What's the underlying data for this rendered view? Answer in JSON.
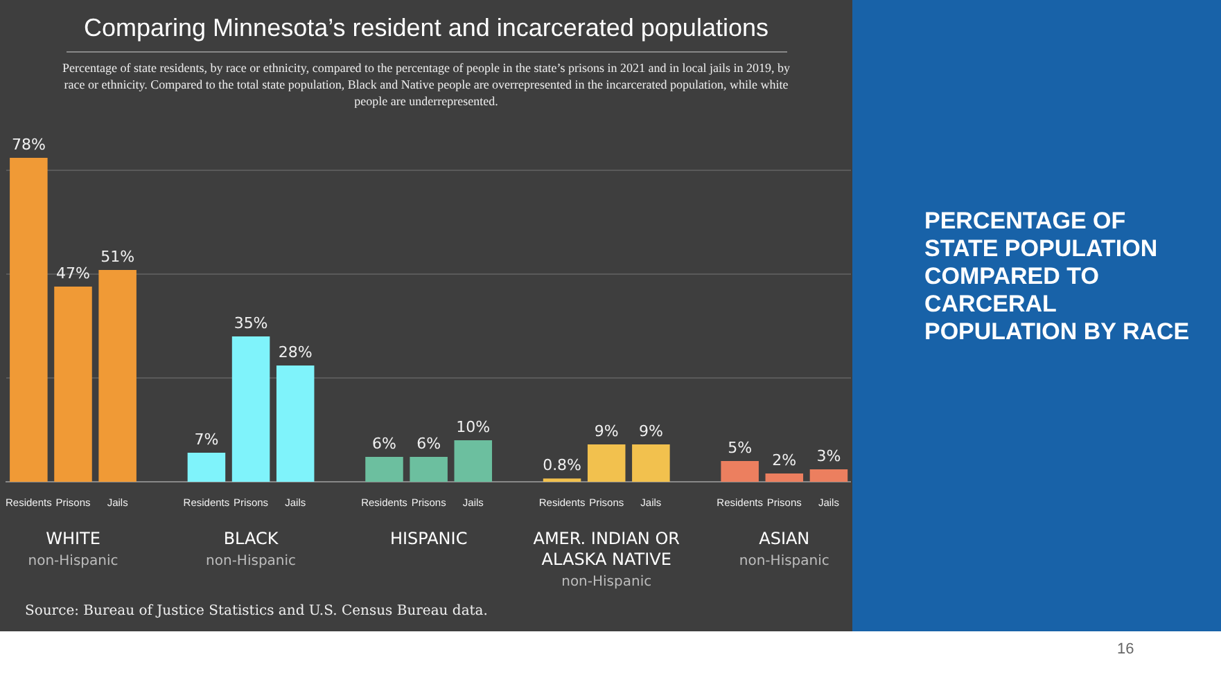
{
  "chart_data": {
    "type": "bar",
    "title": "Comparing Minnesota’s resident and incarcerated populations",
    "subtitle": "Percentage of state residents, by race or ethnicity, compared to the percentage of people in the state’s prisons in 2021 and in local jails in 2019, by race or ethnicity. Compared to the total state population, Black and Native people are overrepresented in the incarcerated population, while white people are underrepresented.",
    "categories": [
      "Residents",
      "Prisons",
      "Jails",
      null,
      "Residents",
      "Prisons",
      "Jails",
      null,
      "Residents",
      "Prisons",
      "Jails",
      null,
      "Residents",
      "Prisons",
      "Jails",
      null,
      "Residents",
      "Prisons",
      "Jails"
    ],
    "values": [
      78,
      47,
      51,
      null,
      7,
      35,
      28,
      null,
      6,
      6,
      10,
      null,
      0.8,
      9,
      9,
      null,
      5,
      2,
      3
    ],
    "colors": [
      "#f09a36",
      "#f09a36",
      "#f09a36",
      "#000000",
      "#7ff3fb",
      "#7ff3fb",
      "#7ff3fb",
      "#000000",
      "#6cbf9f",
      "#6cbf9f",
      "#6cbf9f",
      "#000000",
      "#f2c14e",
      "#f2c14e",
      "#f2c14e",
      "#000000",
      "#ec7f5f",
      "#ec7f5f",
      "#ec7f5f"
    ],
    "value_labels": [
      "78%",
      "47%",
      "51%",
      null,
      "7%",
      "35%",
      "28%",
      null,
      "6%",
      "6%",
      "10%",
      null,
      "0.8%",
      "9%",
      "9%",
      null,
      "5%",
      "2%",
      "3%"
    ],
    "yticks": [
      {
        "value": 25,
        "label": null
      },
      {
        "value": 50,
        "label": null
      },
      {
        "value": 75,
        "label": null
      }
    ],
    "grid": "y",
    "tick_labels": "x",
    "legend": false,
    "annotations": [
      "WHITE\nnon-Hispanic",
      "BLACK\nnon-Hispanic",
      "HISPANIC",
      "AMER. INDIAN OR\nALASKA NATIVE\nnon-Hispanic",
      "ASIAN\nnon-Hispanic",
      "Source: Bureau of Justice Statistics and U.S. Census Bureau data.",
      "PERCENTAGE OF STATE POPULATION COMPARED TO CARCERAL POPULATION BY RACE",
      "16"
    ]
  }
}
